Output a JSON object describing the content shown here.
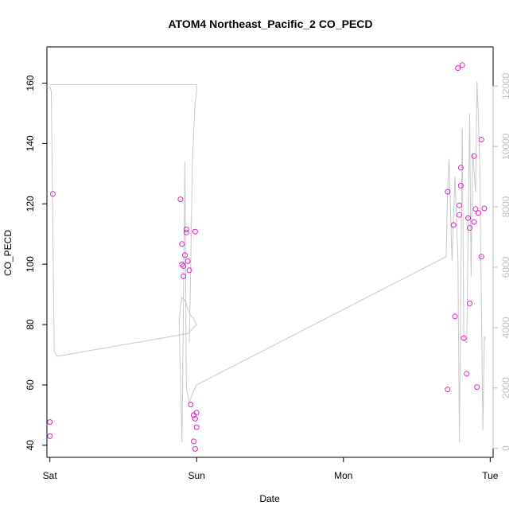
{
  "chart_data": {
    "type": "scatter",
    "title": "ATOM4 Northeast_Pacific_2 CO_PECD",
    "xlabel": "Date",
    "ylabel": "CO_PECD",
    "x_ticks": [
      "Sat",
      "Sun",
      "Mon",
      "Tue"
    ],
    "xlim": [
      -0.02,
      3.02
    ],
    "ylim": [
      36,
      172
    ],
    "y_ticks": [
      40,
      60,
      80,
      100,
      120,
      140,
      160
    ],
    "y2lim": [
      -300,
      13300
    ],
    "y2_ticks": [
      0,
      2000,
      4000,
      6000,
      8000,
      10000,
      12000
    ],
    "point_color": "#e020c8",
    "line_color": "#c8c8c8",
    "grid": false,
    "series": [
      {
        "type": "scatter",
        "axis": "left",
        "x": [
          0.02,
          0.0,
          0.0,
          0.89,
          0.9,
          0.9,
          0.91,
          0.91,
          0.92,
          0.93,
          0.93,
          0.94,
          0.95,
          0.96,
          0.98,
          0.99,
          0.98,
          0.99,
          1.0,
          1.0,
          0.99,
          2.71,
          2.71,
          2.75,
          2.76,
          2.78,
          2.79,
          2.8,
          2.8,
          2.81,
          2.79,
          2.82,
          2.84,
          2.85,
          2.86,
          2.86,
          2.89,
          2.89,
          2.9,
          2.91,
          2.92,
          2.94,
          2.94,
          2.96
        ],
        "y": [
          123.3,
          47.7,
          43.0,
          121.5,
          106.7,
          100.0,
          99.4,
          96.0,
          103.0,
          111.5,
          110.5,
          101.0,
          98.0,
          53.5,
          50.0,
          48.8,
          41.3,
          38.8,
          46.0,
          50.8,
          110.8,
          124.0,
          58.5,
          113.0,
          82.7,
          165.0,
          116.3,
          132.0,
          126.0,
          166.0,
          119.5,
          75.5,
          63.7,
          115.3,
          87.0,
          112.0,
          135.8,
          114.0,
          118.3,
          59.3,
          117.0,
          102.5,
          141.3,
          118.5
        ]
      },
      {
        "type": "line",
        "axis": "right",
        "x": [
          0.0,
          0.01,
          0.03,
          0.05,
          0.94,
          0.96,
          0.98,
          1.0,
          0.98,
          0.96,
          0.94,
          0.93,
          0.92,
          0.9,
          0.89,
          0.88,
          0.88,
          0.9,
          0.92,
          0.93,
          0.95,
          0.97,
          1.0,
          2.7,
          2.71,
          2.72,
          2.74,
          2.76,
          2.78,
          2.79,
          2.81,
          2.82,
          2.84,
          2.86,
          2.87,
          2.88,
          2.9,
          2.91,
          2.92,
          2.93,
          2.95,
          2.96,
          2.97
        ],
        "y": [
          12000,
          11800,
          3200,
          3050,
          3800,
          3900,
          4000,
          4100,
          4300,
          4400,
          4600,
          4800,
          4900,
          5000,
          4700,
          4200,
          4300,
          200,
          9500,
          2000,
          1500,
          1800,
          2100,
          6350,
          8500,
          9600,
          6200,
          9000,
          6300,
          200,
          10600,
          3600,
          3500,
          11100,
          5700,
          9800,
          8500,
          12150,
          11000,
          9000,
          600,
          3700,
          3600
        ]
      },
      {
        "type": "line",
        "axis": "right",
        "x": [
          0.0,
          1.0,
          1.0,
          0.99,
          0.98,
          0.97,
          0.96,
          0.95
        ],
        "y": [
          12050,
          12050,
          11800,
          11500,
          10500,
          9300,
          6000,
          3500
        ]
      }
    ]
  }
}
